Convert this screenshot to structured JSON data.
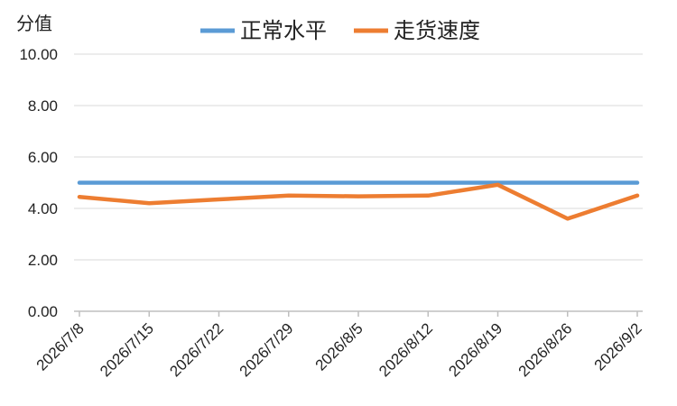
{
  "chart_data": {
    "type": "line",
    "ylabel": "分值",
    "ylim": [
      0,
      10
    ],
    "y_ticks": [
      "0.00",
      "2.00",
      "4.00",
      "6.00",
      "8.00",
      "10.00"
    ],
    "categories": [
      "2026/7/8",
      "2026/7/15",
      "2026/7/22",
      "2026/7/29",
      "2026/8/5",
      "2026/8/12",
      "2026/8/19",
      "2026/8/26",
      "2026/9/2"
    ],
    "series": [
      {
        "name": "正常水平",
        "color": "#5B9BD5",
        "values": [
          5,
          5,
          5,
          5,
          5,
          5,
          5,
          5,
          5
        ]
      },
      {
        "name": "走货速度",
        "color": "#ED7D31",
        "values": [
          4.45,
          4.2,
          4.35,
          4.5,
          4.47,
          4.5,
          4.92,
          3.6,
          4.5
        ]
      }
    ],
    "grid": true,
    "legend_position": "top"
  }
}
